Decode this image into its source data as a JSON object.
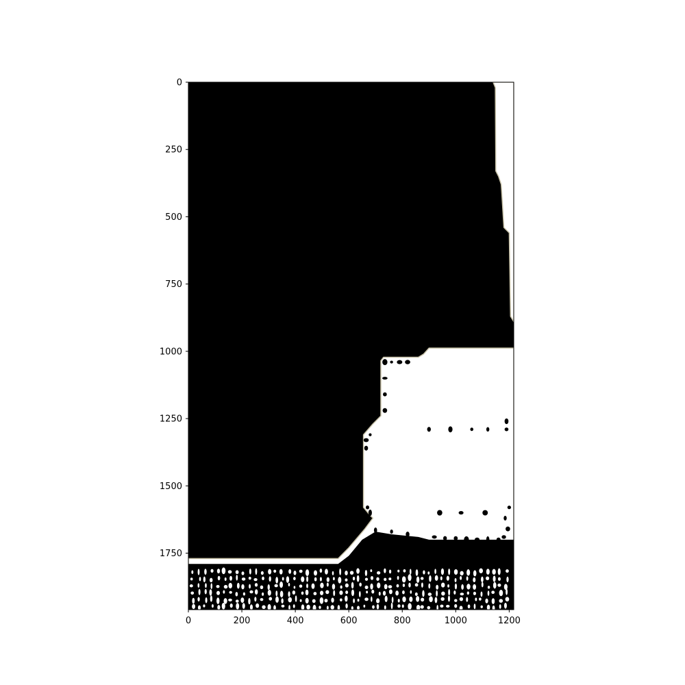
{
  "chart_data": {
    "type": "heatmap",
    "title": "",
    "xlabel": "",
    "ylabel": "",
    "xlim": [
      0,
      1217
    ],
    "ylim": [
      1960,
      0
    ],
    "grid": false,
    "legend": false,
    "colors": {
      "background": "#000000",
      "foreground": "#ffffff",
      "edge": "#c8c2a8",
      "axes": "#000000"
    },
    "xticks": [
      {
        "value": 0,
        "label": "0"
      },
      {
        "value": 200,
        "label": "200"
      },
      {
        "value": 400,
        "label": "400"
      },
      {
        "value": 600,
        "label": "600"
      },
      {
        "value": 800,
        "label": "800"
      },
      {
        "value": 1000,
        "label": "1000"
      },
      {
        "value": 1200,
        "label": "1200"
      }
    ],
    "yticks": [
      {
        "value": 0,
        "label": "0"
      },
      {
        "value": 250,
        "label": "250"
      },
      {
        "value": 500,
        "label": "500"
      },
      {
        "value": 750,
        "label": "750"
      },
      {
        "value": 1000,
        "label": "1000"
      },
      {
        "value": 1250,
        "label": "1250"
      },
      {
        "value": 1500,
        "label": "1500"
      },
      {
        "value": 1750,
        "label": "1750"
      }
    ],
    "regions": [
      {
        "name": "right-edge-strip",
        "fill": "#ffffff",
        "polygon": [
          [
            1140,
            0
          ],
          [
            1217,
            0
          ],
          [
            1217,
            890
          ],
          [
            1205,
            870
          ],
          [
            1200,
            560
          ],
          [
            1180,
            540
          ],
          [
            1170,
            380
          ],
          [
            1160,
            350
          ],
          [
            1150,
            330
          ],
          [
            1148,
            20
          ]
        ]
      },
      {
        "name": "white-region",
        "fill": "#ffffff",
        "polygon": [
          [
            0,
            1770
          ],
          [
            560,
            1770
          ],
          [
            600,
            1730
          ],
          [
            660,
            1660
          ],
          [
            690,
            1620
          ],
          [
            680,
            1610
          ],
          [
            655,
            1580
          ],
          [
            655,
            1310
          ],
          [
            690,
            1270
          ],
          [
            720,
            1240
          ],
          [
            720,
            1035
          ],
          [
            730,
            1022
          ],
          [
            860,
            1022
          ],
          [
            880,
            1010
          ],
          [
            900,
            988
          ],
          [
            1217,
            988
          ],
          [
            1217,
            1960
          ],
          [
            0,
            1960
          ]
        ]
      },
      {
        "name": "bottom-dark-band",
        "fill": "#000000",
        "polygon": [
          [
            0,
            1790
          ],
          [
            560,
            1790
          ],
          [
            600,
            1760
          ],
          [
            650,
            1700
          ],
          [
            700,
            1670
          ],
          [
            760,
            1680
          ],
          [
            860,
            1690
          ],
          [
            900,
            1700
          ],
          [
            1217,
            1700
          ],
          [
            1217,
            1960
          ],
          [
            0,
            1960
          ]
        ]
      }
    ]
  }
}
